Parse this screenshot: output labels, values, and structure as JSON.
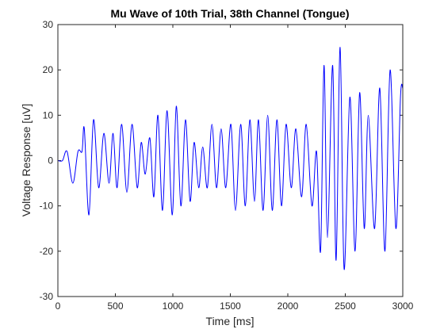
{
  "chart_data": {
    "type": "line",
    "title": "Mu Wave of 10th Trial, 38th Channel (Tongue)",
    "xlabel": "Time [ms]",
    "ylabel": "Voltage Response [uV]",
    "xlim": [
      0,
      3000
    ],
    "ylim": [
      -30,
      30
    ],
    "xticks": [
      0,
      500,
      1000,
      1500,
      2000,
      2500,
      3000
    ],
    "yticks": [
      -30,
      -20,
      -10,
      0,
      10,
      20,
      30
    ],
    "xtick_labels": [
      "0",
      "500",
      "1000",
      "1500",
      "2000",
      "2500",
      "3000"
    ],
    "ytick_labels": [
      "-30",
      "-20",
      "-10",
      "0",
      "10",
      "20",
      "30"
    ],
    "grid": false,
    "line_color": "#0000ff",
    "series": [
      {
        "x": [
          0,
          40,
          80,
          130,
          175,
          210,
          230,
          270,
          310,
          355,
          400,
          445,
          480,
          515,
          555,
          600,
          645,
          690,
          725,
          760,
          800,
          835,
          870,
          910,
          950,
          995,
          1030,
          1070,
          1110,
          1150,
          1185,
          1225,
          1260,
          1300,
          1340,
          1380,
          1420,
          1460,
          1505,
          1545,
          1590,
          1630,
          1670,
          1710,
          1745,
          1785,
          1825,
          1865,
          1905,
          1945,
          1985,
          2030,
          2070,
          2120,
          2160,
          2210,
          2250,
          2285,
          2315,
          2345,
          2390,
          2420,
          2455,
          2490,
          2540,
          2585,
          2625,
          2665,
          2700,
          2755,
          2800,
          2845,
          2890,
          2940,
          2980,
          3000
        ],
        "y": [
          0,
          0,
          2,
          -5,
          2,
          2,
          7,
          -12,
          9,
          -6,
          6,
          -5,
          6,
          -6,
          8,
          -7,
          8,
          -6,
          4,
          -3,
          5,
          -8,
          10,
          -11,
          11,
          -12,
          12,
          -10,
          9,
          -9,
          4,
          -6,
          3,
          -6,
          8,
          -6,
          7,
          -6,
          8,
          -11,
          8,
          -10,
          9,
          -9,
          9,
          -11,
          10,
          -11,
          9,
          -10,
          8,
          -6,
          7,
          -8,
          8,
          -10,
          2,
          -20,
          21,
          -17,
          21,
          -22,
          25,
          -24,
          14,
          -20,
          15,
          -15,
          10,
          -15,
          16,
          -20,
          20,
          -15,
          14,
          16
        ]
      }
    ]
  }
}
